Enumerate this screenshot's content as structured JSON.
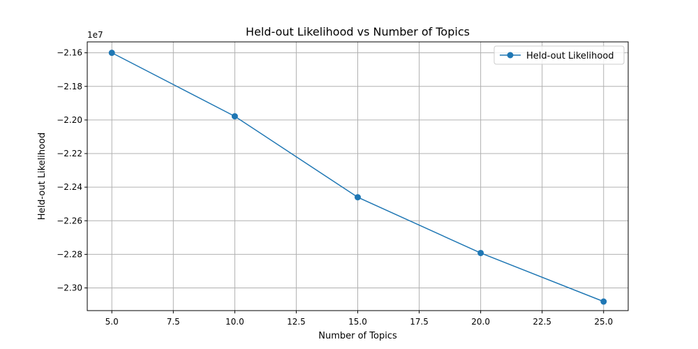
{
  "chart_data": {
    "type": "line",
    "title": "Held-out Likelihood vs Number of Topics",
    "xlabel": "Number of Topics",
    "ylabel": "Held-out Likelihood",
    "offset_text": "1e7",
    "x": [
      5,
      10,
      15,
      20,
      25
    ],
    "series": [
      {
        "name": "Held-out Likelihood",
        "values": [
          -21600000,
          -21978000,
          -22460000,
          -22792000,
          -23081000
        ],
        "color": "#1f77b4",
        "marker": "circle"
      }
    ],
    "xlim": [
      4.0,
      26.0
    ],
    "ylim": [
      -23135000,
      -21535000
    ],
    "xticks": [
      5.0,
      7.5,
      10.0,
      12.5,
      15.0,
      17.5,
      20.0,
      22.5,
      25.0
    ],
    "xtick_labels": [
      "5.0",
      "7.5",
      "10.0",
      "12.5",
      "15.0",
      "17.5",
      "20.0",
      "22.5",
      "25.0"
    ],
    "yticks": [
      -21600000,
      -21800000,
      -22000000,
      -22200000,
      -22400000,
      -22600000,
      -22800000,
      -23000000
    ],
    "ytick_labels": [
      "−2.16",
      "−2.18",
      "−2.20",
      "−2.22",
      "−2.24",
      "−2.26",
      "−2.28",
      "−2.30"
    ],
    "grid": true,
    "legend_position": "top-right",
    "grid_color": "#b0b0b0"
  }
}
